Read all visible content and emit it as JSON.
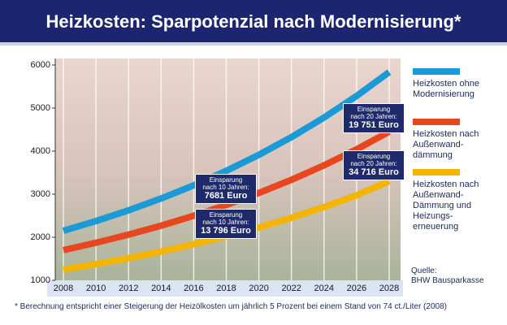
{
  "chart_data": {
    "type": "line",
    "title": "Heizkosten: Sparpotenzial nach Modernisierung*",
    "x": [
      2008,
      2010,
      2012,
      2014,
      2016,
      2018,
      2020,
      2022,
      2024,
      2026,
      2028
    ],
    "series": [
      {
        "name": "Heizkosten ohne\nModernisierung",
        "color": "#1a9ad6",
        "values": [
          2150,
          2376,
          2625,
          2900,
          3205,
          3542,
          3914,
          4325,
          4779,
          5281,
          5835
        ]
      },
      {
        "name": "Heizkosten nach\nAußenwand-\ndämmung",
        "color": "#e8461e",
        "values": [
          1700,
          1872,
          2061,
          2269,
          2498,
          2750,
          3028,
          3334,
          3670,
          4041,
          4450
        ]
      },
      {
        "name": "Heizkosten nach\nAußenwand-\nDämmung und\nHeizungs-\nerneuerung",
        "color": "#f5b400",
        "values": [
          1250,
          1377,
          1516,
          1669,
          1838,
          2024,
          2228,
          2453,
          2701,
          2974,
          3300
        ]
      }
    ],
    "xlim": [
      2007.5,
      2028.7
    ],
    "xticks": [
      2008,
      2010,
      2012,
      2014,
      2016,
      2018,
      2020,
      2022,
      2024,
      2026,
      2028
    ],
    "ylim": [
      1000,
      6000
    ],
    "yticks": [
      1000,
      2000,
      3000,
      4000,
      5000,
      6000
    ],
    "grid": "x",
    "annotations": [
      {
        "text": "Einsparung\nnach 10 Jahren:",
        "value": "7681 Euro"
      },
      {
        "text": "Einsparung\nnach 10 Jahren:",
        "value": "13 796 Euro"
      },
      {
        "text": "Einsparung\nnach 20 Jahren:",
        "value": "19 751 Euro"
      },
      {
        "text": "Einsparung\nnach 20 Jahren:",
        "value": "34 716 Euro"
      }
    ],
    "source": "Quelle:\nBHW Bausparkasse",
    "footnote": "* Berechnung entspricht einer Steigerung der Heizölkosten um jährlich 5 Prozent bei einem Stand von 74 ct./Liter (2008)"
  }
}
